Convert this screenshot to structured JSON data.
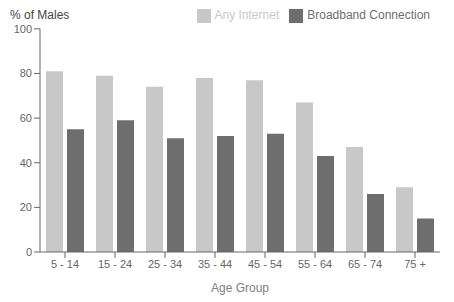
{
  "chart_data": {
    "type": "bar",
    "xlabel": "Age Group",
    "ylabel": "% of Males",
    "categories": [
      "5 - 14",
      "15 - 24",
      "25 - 34",
      "35 - 44",
      "45 - 54",
      "55 - 64",
      "65 - 74",
      "75 +"
    ],
    "series": [
      {
        "name": "Any Internet",
        "color": "#c8c8c8",
        "values": [
          81,
          79,
          74,
          78,
          77,
          67,
          47,
          29
        ]
      },
      {
        "name": "Broadband Connection",
        "color": "#6e6e6e",
        "values": [
          55,
          59,
          51,
          52,
          53,
          43,
          26,
          15
        ]
      }
    ],
    "ylim": [
      0,
      100
    ],
    "yticks": [
      0,
      20,
      40,
      60,
      80,
      100
    ],
    "grid": false,
    "legend": "upper right"
  }
}
